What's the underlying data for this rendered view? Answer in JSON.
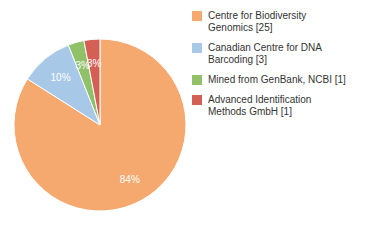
{
  "chart_data": {
    "type": "pie",
    "labels": [
      "Centre for Biodiversity\nGenomics [25]",
      "Canadian Centre for DNA\nBarcoding [3]",
      "Mined from GenBank, NCBI [1]",
      "Advanced Identification\nMethods GmbH [1]"
    ],
    "values": [
      84,
      10,
      3,
      3
    ],
    "value_labels": [
      "84%",
      "10%",
      "3%",
      "3%"
    ],
    "colors": [
      "#F5A96E",
      "#A8C8E8",
      "#90C068",
      "#D46055"
    ],
    "data_labels": true,
    "legend": "right"
  }
}
